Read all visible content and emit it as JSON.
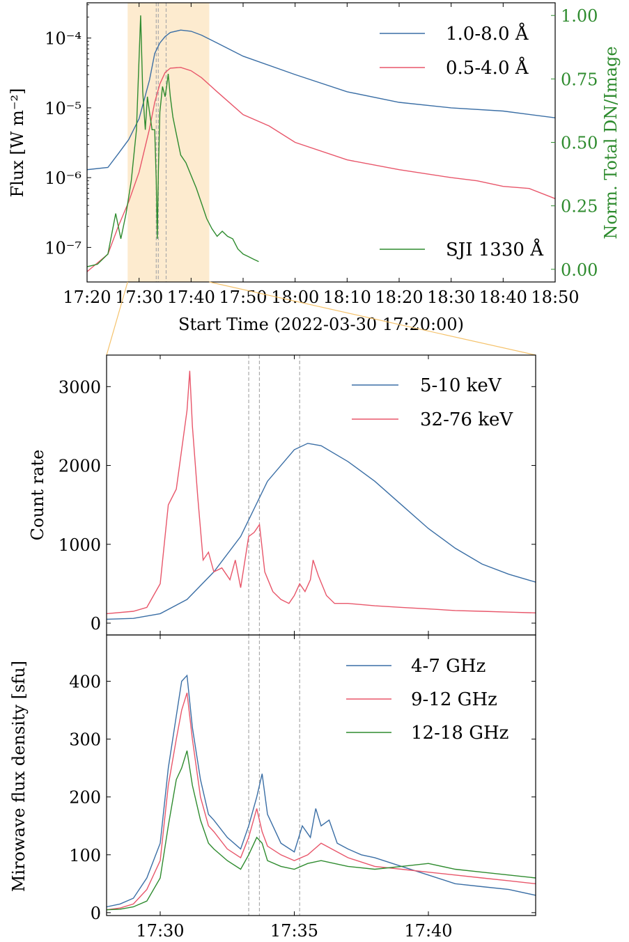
{
  "colors": {
    "blue": "#3a6ea5",
    "red": "#e8566a",
    "green": "#2e8b2e",
    "highlight": "#fdebcf",
    "guide": "#aaaaaa",
    "zoom": "#f5c26b"
  },
  "chart_data": [
    {
      "type": "line",
      "xlabel": "Start Time (2022-03-30 17:20:00)",
      "ylabel": "Flux [W m⁻²]",
      "ylabel_right": "Norm. Total DN/Image",
      "y_scale": "log",
      "xlim": [
        0,
        90
      ],
      "ylim": [
        3.2e-08,
        0.00032
      ],
      "ylim_right": [
        -0.05,
        1.05
      ],
      "x_tick_labels": [
        "17:20",
        "17:30",
        "17:40",
        "17:50",
        "18:00",
        "18:10",
        "18:20",
        "18:30",
        "18:40",
        "18:50"
      ],
      "y_tick_labels": [
        "10⁻⁷",
        "10⁻⁶",
        "10⁻⁵",
        "10⁻⁴"
      ],
      "y_right_tick_labels": [
        "0.00",
        "0.25",
        "0.50",
        "0.75",
        "1.00"
      ],
      "highlight_range": [
        7.8,
        23.5
      ],
      "guide_lines": [
        13.3,
        13.7,
        15.2
      ],
      "legend": [
        "1.0-8.0 Å",
        "0.5-4.0 Å",
        "SJI 1330 Å"
      ],
      "series": [
        {
          "name": "1.0-8.0 Å",
          "axis": "left",
          "color": "blue",
          "x": [
            0,
            4,
            6,
            8,
            10,
            12,
            13,
            14,
            15,
            16,
            18,
            20,
            22,
            25,
            30,
            40,
            50,
            60,
            70,
            80,
            90
          ],
          "y": [
            1.3e-06,
            1.4e-06,
            2.2e-06,
            3.5e-06,
            7e-06,
            2.5e-05,
            6e-05,
            8.5e-05,
            0.000105,
            0.00012,
            0.00013,
            0.000125,
            0.00011,
            8.5e-05,
            5.5e-05,
            3e-05,
            1.7e-05,
            1.2e-05,
            1e-05,
            9e-06,
            7.2e-06
          ]
        },
        {
          "name": "0.5-4.0 Å",
          "axis": "left",
          "color": "red",
          "x": [
            0,
            2,
            4,
            6,
            8,
            10,
            12,
            13,
            14,
            15,
            16,
            18,
            20,
            22,
            25,
            30,
            35,
            40,
            50,
            60,
            70,
            75,
            80,
            85,
            90
          ],
          "y": [
            4.5e-08,
            6e-08,
            8e-08,
            2e-07,
            4.5e-07,
            1.2e-06,
            5e-06,
            1.2e-05,
            2.2e-05,
            3.2e-05,
            3.7e-05,
            3.8e-05,
            3.4e-05,
            2.7e-05,
            1.7e-05,
            8e-06,
            5.5e-06,
            3.2e-06,
            1.8e-06,
            1.3e-06,
            1e-06,
            9e-07,
            7.5e-07,
            7e-07,
            5e-07
          ]
        },
        {
          "name": "SJI 1330 Å",
          "axis": "right",
          "color": "green",
          "x": [
            0,
            2,
            4,
            5.5,
            6.5,
            7.5,
            8.5,
            9.5,
            10.3,
            10.7,
            11.2,
            11.6,
            12.0,
            12.5,
            13.0,
            13.3,
            13.5,
            13.7,
            14.0,
            14.5,
            15.0,
            15.3,
            15.6,
            16.0,
            16.5,
            17.0,
            18.0,
            19.0,
            20.0,
            21.0,
            22.0,
            23.0,
            24.0,
            25.0,
            26.0,
            27.0,
            28.0,
            29.0,
            30.0,
            31.0,
            32.0,
            33.0
          ],
          "y": [
            0.01,
            0.02,
            0.06,
            0.22,
            0.12,
            0.22,
            0.35,
            0.55,
            1.0,
            0.7,
            0.55,
            0.68,
            0.62,
            0.55,
            0.55,
            0.35,
            0.12,
            0.38,
            0.62,
            0.72,
            0.68,
            0.72,
            0.77,
            0.68,
            0.6,
            0.55,
            0.45,
            0.42,
            0.37,
            0.32,
            0.26,
            0.2,
            0.16,
            0.13,
            0.15,
            0.13,
            0.12,
            0.08,
            0.06,
            0.05,
            0.04,
            0.03
          ]
        }
      ]
    },
    {
      "type": "line",
      "ylabel": "Count rate",
      "xlim": [
        28,
        44
      ],
      "ylim": [
        -150,
        3400
      ],
      "y_tick_labels": [
        "0",
        "1000",
        "2000",
        "3000"
      ],
      "guide_lines": [
        33.3,
        33.7,
        35.2
      ],
      "legend": [
        "5-10 keV",
        "32-76 keV"
      ],
      "series": [
        {
          "name": "5-10 keV",
          "color": "blue",
          "x": [
            28,
            29,
            30,
            31,
            32,
            33,
            34,
            35,
            35.5,
            36,
            37,
            38,
            39,
            40,
            41,
            42,
            43,
            44
          ],
          "y": [
            50,
            60,
            120,
            300,
            650,
            1100,
            1800,
            2200,
            2280,
            2250,
            2050,
            1800,
            1500,
            1200,
            950,
            750,
            620,
            520
          ]
        },
        {
          "name": "32-76 keV",
          "color": "red",
          "x": [
            28,
            29,
            29.5,
            30,
            30.3,
            30.6,
            30.8,
            31,
            31.1,
            31.2,
            31.4,
            31.6,
            31.8,
            32.0,
            32.3,
            32.6,
            32.8,
            33.0,
            33.3,
            33.5,
            33.7,
            33.9,
            34.2,
            34.5,
            34.8,
            35.0,
            35.2,
            35.4,
            35.6,
            35.7,
            35.9,
            36.2,
            36.5,
            37,
            38,
            39,
            40,
            41,
            42,
            43,
            44
          ],
          "y": [
            120,
            150,
            200,
            500,
            1500,
            1700,
            2200,
            2700,
            3200,
            2500,
            1600,
            800,
            900,
            650,
            700,
            550,
            800,
            450,
            1100,
            1150,
            1250,
            650,
            400,
            300,
            250,
            350,
            500,
            400,
            550,
            800,
            600,
            350,
            250,
            250,
            220,
            200,
            180,
            160,
            150,
            140,
            130
          ]
        }
      ]
    },
    {
      "type": "line",
      "ylabel": "Mirowave flux density [sfu]",
      "xlim": [
        28,
        44
      ],
      "ylim": [
        -5,
        480
      ],
      "x_tick_labels": [
        "17:30",
        "17:35",
        "17:40"
      ],
      "y_tick_labels": [
        "0",
        "100",
        "200",
        "300",
        "400"
      ],
      "guide_lines": [
        33.3,
        33.7,
        35.2
      ],
      "legend": [
        "4-7 GHz",
        "9-12 GHz",
        "12-18 GHz"
      ],
      "series": [
        {
          "name": "4-7 GHz",
          "color": "blue",
          "x": [
            28,
            28.5,
            29,
            29.5,
            30,
            30.3,
            30.6,
            30.8,
            31.0,
            31.2,
            31.5,
            31.8,
            32.0,
            32.5,
            33.0,
            33.3,
            33.6,
            33.8,
            34.0,
            34.5,
            35.0,
            35.3,
            35.6,
            35.8,
            36.0,
            36.3,
            36.6,
            37,
            37.5,
            38,
            39,
            40,
            41,
            42,
            43,
            44
          ],
          "y": [
            10,
            15,
            25,
            60,
            120,
            250,
            340,
            400,
            410,
            320,
            230,
            170,
            160,
            130,
            110,
            150,
            200,
            240,
            170,
            120,
            105,
            150,
            130,
            180,
            150,
            160,
            120,
            110,
            100,
            95,
            80,
            65,
            50,
            45,
            40,
            30
          ]
        },
        {
          "name": "9-12 GHz",
          "color": "red",
          "x": [
            28,
            28.5,
            29,
            29.5,
            30,
            30.3,
            30.6,
            30.8,
            31.0,
            31.2,
            31.5,
            31.8,
            32.0,
            32.5,
            33.0,
            33.3,
            33.6,
            33.8,
            34.0,
            34.5,
            35.0,
            35.5,
            36,
            37,
            38,
            39,
            40,
            41,
            42,
            43,
            44
          ],
          "y": [
            5,
            8,
            15,
            40,
            90,
            220,
            300,
            350,
            380,
            300,
            200,
            150,
            140,
            110,
            95,
            130,
            180,
            140,
            115,
            100,
            90,
            100,
            120,
            95,
            80,
            75,
            70,
            65,
            60,
            55,
            50
          ]
        },
        {
          "name": "12-18 GHz",
          "color": "green",
          "x": [
            28,
            28.5,
            29,
            29.5,
            30,
            30.3,
            30.6,
            30.8,
            31.0,
            31.2,
            31.5,
            31.8,
            32.0,
            32.5,
            33.0,
            33.3,
            33.6,
            33.8,
            34.0,
            34.5,
            35.0,
            35.5,
            36,
            37,
            38,
            39,
            40,
            41,
            42,
            43,
            44
          ],
          "y": [
            5,
            6,
            10,
            20,
            60,
            150,
            230,
            250,
            280,
            220,
            160,
            120,
            110,
            90,
            75,
            100,
            130,
            120,
            90,
            80,
            75,
            85,
            90,
            80,
            75,
            80,
            85,
            75,
            70,
            65,
            60
          ]
        }
      ]
    }
  ]
}
